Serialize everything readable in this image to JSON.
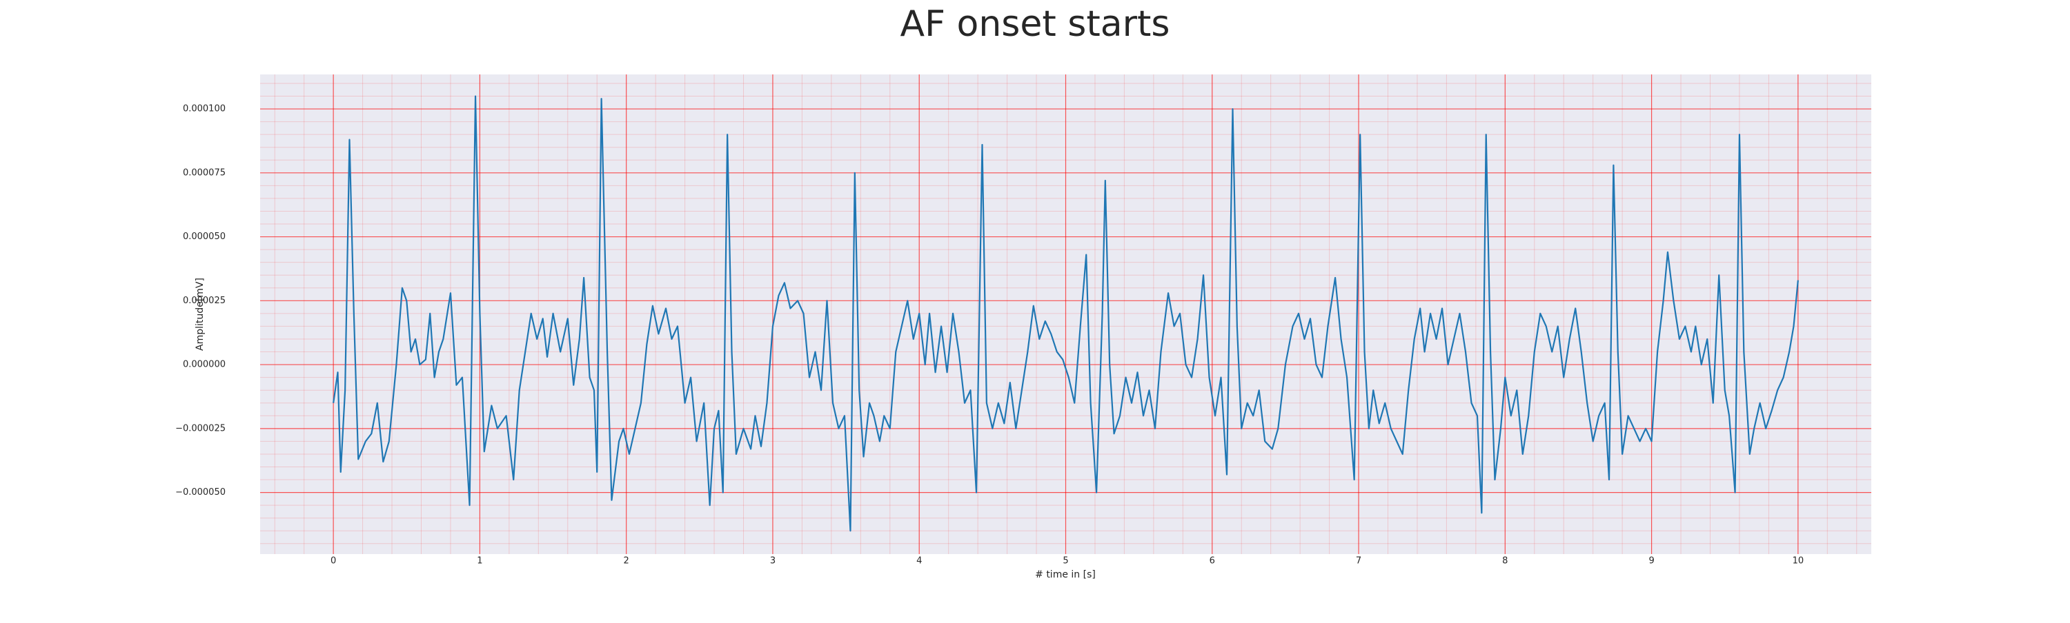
{
  "chart_data": {
    "type": "line",
    "title": "AF onset starts",
    "x_label": "# time in [s]",
    "y_label": "Amplitude[mV]",
    "color": "#1f77b4",
    "grid": true,
    "minor_grid": true,
    "background": "#eaeaf2",
    "grid_color": "#ff0000",
    "xlim": [
      -0.5,
      10.5
    ],
    "xticks": [
      0,
      1,
      2,
      3,
      4,
      5,
      6,
      7,
      8,
      9,
      10
    ],
    "ylim": [
      -7.41e-05,
      0.0001135
    ],
    "yticks": [
      {
        "value": -5e-05,
        "label": "−0.000050"
      },
      {
        "value": -2.5e-05,
        "label": "−0.000025"
      },
      {
        "value": 0,
        "label": "0.000000"
      },
      {
        "value": 2.5e-05,
        "label": "0.000025"
      },
      {
        "value": 5e-05,
        "label": "0.000050"
      },
      {
        "value": 7.5e-05,
        "label": "0.000075"
      },
      {
        "value": 0.0001,
        "label": "0.000100"
      }
    ],
    "x": [
      0,
      0.03,
      0.05,
      0.08,
      0.11,
      0.14,
      0.17,
      0.22,
      0.26,
      0.3,
      0.34,
      0.38,
      0.43,
      0.47,
      0.5,
      0.53,
      0.56,
      0.59,
      0.63,
      0.66,
      0.69,
      0.72,
      0.75,
      0.8,
      0.84,
      0.88,
      0.93,
      0.97,
      1.0,
      1.03,
      1.08,
      1.12,
      1.18,
      1.23,
      1.27,
      1.31,
      1.35,
      1.39,
      1.43,
      1.46,
      1.5,
      1.55,
      1.6,
      1.64,
      1.68,
      1.71,
      1.75,
      1.78,
      1.8,
      1.83,
      1.87,
      1.9,
      1.95,
      1.98,
      2.02,
      2.06,
      2.1,
      2.14,
      2.18,
      2.22,
      2.27,
      2.31,
      2.35,
      2.4,
      2.44,
      2.48,
      2.53,
      2.57,
      2.6,
      2.63,
      2.66,
      2.69,
      2.72,
      2.75,
      2.8,
      2.85,
      2.88,
      2.92,
      2.96,
      3.0,
      3.04,
      3.08,
      3.12,
      3.17,
      3.21,
      3.25,
      3.29,
      3.33,
      3.37,
      3.41,
      3.45,
      3.49,
      3.53,
      3.56,
      3.59,
      3.62,
      3.66,
      3.69,
      3.73,
      3.76,
      3.8,
      3.84,
      3.88,
      3.92,
      3.96,
      4.0,
      4.04,
      4.07,
      4.11,
      4.15,
      4.19,
      4.23,
      4.27,
      4.31,
      4.35,
      4.39,
      4.43,
      4.46,
      4.5,
      4.54,
      4.58,
      4.62,
      4.66,
      4.7,
      4.74,
      4.78,
      4.82,
      4.86,
      4.9,
      4.94,
      4.98,
      5.02,
      5.06,
      5.1,
      5.14,
      5.17,
      5.21,
      5.25,
      5.27,
      5.3,
      5.33,
      5.37,
      5.41,
      5.45,
      5.49,
      5.53,
      5.57,
      5.61,
      5.65,
      5.7,
      5.74,
      5.78,
      5.82,
      5.86,
      5.9,
      5.94,
      5.98,
      6.02,
      6.06,
      6.1,
      6.14,
      6.17,
      6.2,
      6.24,
      6.28,
      6.32,
      6.36,
      6.41,
      6.45,
      6.5,
      6.55,
      6.59,
      6.63,
      6.67,
      6.71,
      6.75,
      6.79,
      6.84,
      6.88,
      6.92,
      6.97,
      7.01,
      7.04,
      7.07,
      7.1,
      7.14,
      7.18,
      7.22,
      7.26,
      7.3,
      7.34,
      7.38,
      7.42,
      7.45,
      7.49,
      7.53,
      7.57,
      7.61,
      7.65,
      7.69,
      7.73,
      7.77,
      7.81,
      7.84,
      7.87,
      7.9,
      7.93,
      7.97,
      8.0,
      8.04,
      8.08,
      8.12,
      8.16,
      8.2,
      8.24,
      8.28,
      8.32,
      8.36,
      8.4,
      8.44,
      8.48,
      8.52,
      8.56,
      8.6,
      8.64,
      8.68,
      8.71,
      8.74,
      8.77,
      8.8,
      8.84,
      8.88,
      8.92,
      8.96,
      9.0,
      9.04,
      9.08,
      9.11,
      9.15,
      9.19,
      9.23,
      9.27,
      9.3,
      9.34,
      9.38,
      9.42,
      9.46,
      9.5,
      9.53,
      9.57,
      9.6,
      9.63,
      9.67,
      9.7,
      9.74,
      9.78,
      9.82,
      9.86,
      9.9,
      9.94,
      9.97,
      10.0
    ],
    "values": [
      -1.5e-05,
      -3e-06,
      -4.2e-05,
      -1e-05,
      8.8e-05,
      2e-05,
      -3.7e-05,
      -3e-05,
      -2.7e-05,
      -1.5e-05,
      -3.8e-05,
      -3e-05,
      0,
      3e-05,
      2.5e-05,
      5e-06,
      1e-05,
      0,
      2e-06,
      2e-05,
      -5e-06,
      5e-06,
      1e-05,
      2.8e-05,
      -8e-06,
      -5e-06,
      -5.5e-05,
      0.000105,
      2e-05,
      -3.4e-05,
      -1.6e-05,
      -2.5e-05,
      -2e-05,
      -4.5e-05,
      -1e-05,
      5e-06,
      2e-05,
      1e-05,
      1.8e-05,
      3e-06,
      2e-05,
      5e-06,
      1.8e-05,
      -8e-06,
      1e-05,
      3.4e-05,
      -5e-06,
      -1e-05,
      -4.2e-05,
      0.000104,
      5e-06,
      -5.3e-05,
      -3e-05,
      -2.5e-05,
      -3.5e-05,
      -2.5e-05,
      -1.5e-05,
      8e-06,
      2.3e-05,
      1.2e-05,
      2.2e-05,
      1e-05,
      1.5e-05,
      -1.5e-05,
      -5e-06,
      -3e-05,
      -1.5e-05,
      -5.5e-05,
      -2.5e-05,
      -1.8e-05,
      -5e-05,
      9e-05,
      5e-06,
      -3.5e-05,
      -2.5e-05,
      -3.3e-05,
      -2e-05,
      -3.2e-05,
      -1.5e-05,
      1.5e-05,
      2.7e-05,
      3.2e-05,
      2.2e-05,
      2.5e-05,
      2e-05,
      -5e-06,
      5e-06,
      -1e-05,
      2.5e-05,
      -1.5e-05,
      -2.5e-05,
      -2e-05,
      -6.5e-05,
      7.5e-05,
      -1e-05,
      -3.6e-05,
      -1.5e-05,
      -2e-05,
      -3e-05,
      -2e-05,
      -2.5e-05,
      5e-06,
      1.5e-05,
      2.5e-05,
      1e-05,
      2e-05,
      0,
      2e-05,
      -3e-06,
      1.5e-05,
      -3e-06,
      2e-05,
      5e-06,
      -1.5e-05,
      -1e-05,
      -5e-05,
      8.6e-05,
      -1.5e-05,
      -2.5e-05,
      -1.5e-05,
      -2.3e-05,
      -7e-06,
      -2.5e-05,
      -1e-05,
      5e-06,
      2.3e-05,
      1e-05,
      1.7e-05,
      1.2e-05,
      5e-06,
      2e-06,
      -5e-06,
      -1.5e-05,
      1.5e-05,
      4.3e-05,
      -1.5e-05,
      -5e-05,
      2e-05,
      7.2e-05,
      0,
      -2.7e-05,
      -2e-05,
      -5e-06,
      -1.5e-05,
      -3e-06,
      -2e-05,
      -1e-05,
      -2.5e-05,
      5e-06,
      2.8e-05,
      1.5e-05,
      2e-05,
      0,
      -5e-06,
      1e-05,
      3.5e-05,
      -5e-06,
      -2e-05,
      -5e-06,
      -4.3e-05,
      0.0001,
      1.5e-05,
      -2.5e-05,
      -1.5e-05,
      -2e-05,
      -1e-05,
      -3e-05,
      -3.3e-05,
      -2.5e-05,
      0,
      1.5e-05,
      2e-05,
      1e-05,
      1.8e-05,
      0,
      -5e-06,
      1.5e-05,
      3.4e-05,
      1e-05,
      -5e-06,
      -4.5e-05,
      9e-05,
      5e-06,
      -2.5e-05,
      -1e-05,
      -2.3e-05,
      -1.5e-05,
      -2.5e-05,
      -3e-05,
      -3.5e-05,
      -1e-05,
      1e-05,
      2.2e-05,
      5e-06,
      2e-05,
      1e-05,
      2.2e-05,
      0,
      1e-05,
      2e-05,
      5e-06,
      -1.5e-05,
      -2e-05,
      -5.8e-05,
      9e-05,
      5e-06,
      -4.5e-05,
      -2.5e-05,
      -5e-06,
      -2e-05,
      -1e-05,
      -3.5e-05,
      -2e-05,
      5e-06,
      2e-05,
      1.5e-05,
      5e-06,
      1.5e-05,
      -5e-06,
      1e-05,
      2.2e-05,
      5e-06,
      -1.5e-05,
      -3e-05,
      -2e-05,
      -1.5e-05,
      -4.5e-05,
      7.8e-05,
      5e-06,
      -3.5e-05,
      -2e-05,
      -2.5e-05,
      -3e-05,
      -2.5e-05,
      -3e-05,
      5e-06,
      2.5e-05,
      4.4e-05,
      2.5e-05,
      1e-05,
      1.5e-05,
      5e-06,
      1.5e-05,
      0,
      1e-05,
      -1.5e-05,
      3.5e-05,
      -1e-05,
      -2e-05,
      -5e-05,
      9e-05,
      5e-06,
      -3.5e-05,
      -2.5e-05,
      -1.5e-05,
      -2.5e-05,
      -1.8e-05,
      -1e-05,
      -5e-06,
      5e-06,
      1.5e-05,
      3.3e-05
    ]
  }
}
